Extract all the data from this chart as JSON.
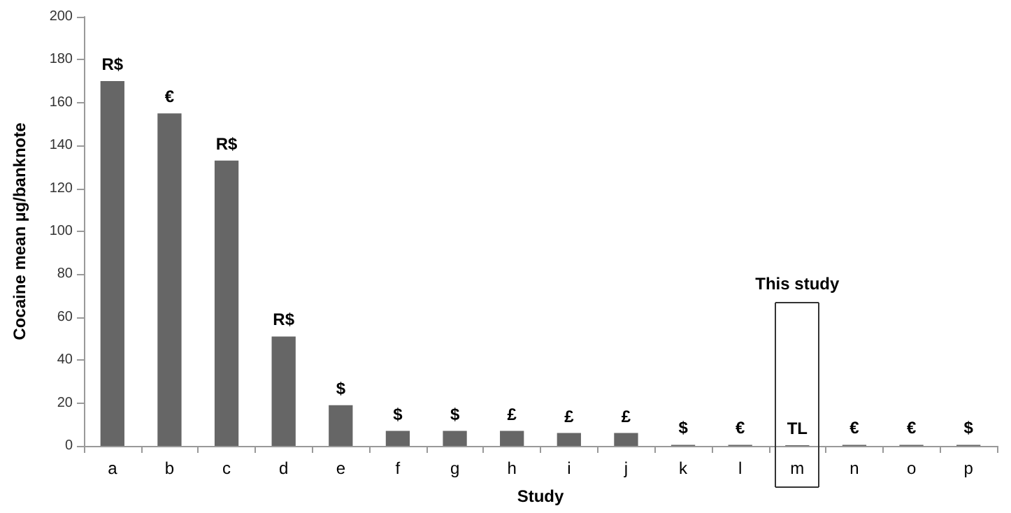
{
  "chart_data": {
    "type": "bar",
    "xlabel": "Study",
    "ylabel": "Cocaine mean µg/banknote",
    "categories": [
      "a",
      "b",
      "c",
      "d",
      "e",
      "f",
      "g",
      "h",
      "i",
      "j",
      "k",
      "l",
      "m",
      "n",
      "o",
      "p"
    ],
    "values": [
      170,
      155,
      133,
      51,
      19,
      7,
      7,
      7,
      6,
      6,
      0.5,
      0.5,
      0.3,
      0.5,
      0.5,
      0.5
    ],
    "value_labels": [
      "R$",
      "€",
      "R$",
      "R$",
      "$",
      "$",
      "$",
      "£",
      "£",
      "£",
      "$",
      "€",
      "TL",
      "€",
      "€",
      "$"
    ],
    "color": "#666666",
    "ylim": [
      0,
      200
    ],
    "yticks": [
      0,
      20,
      40,
      60,
      80,
      100,
      120,
      140,
      160,
      180,
      200
    ],
    "grid": false,
    "annotations": [
      "This study"
    ]
  }
}
